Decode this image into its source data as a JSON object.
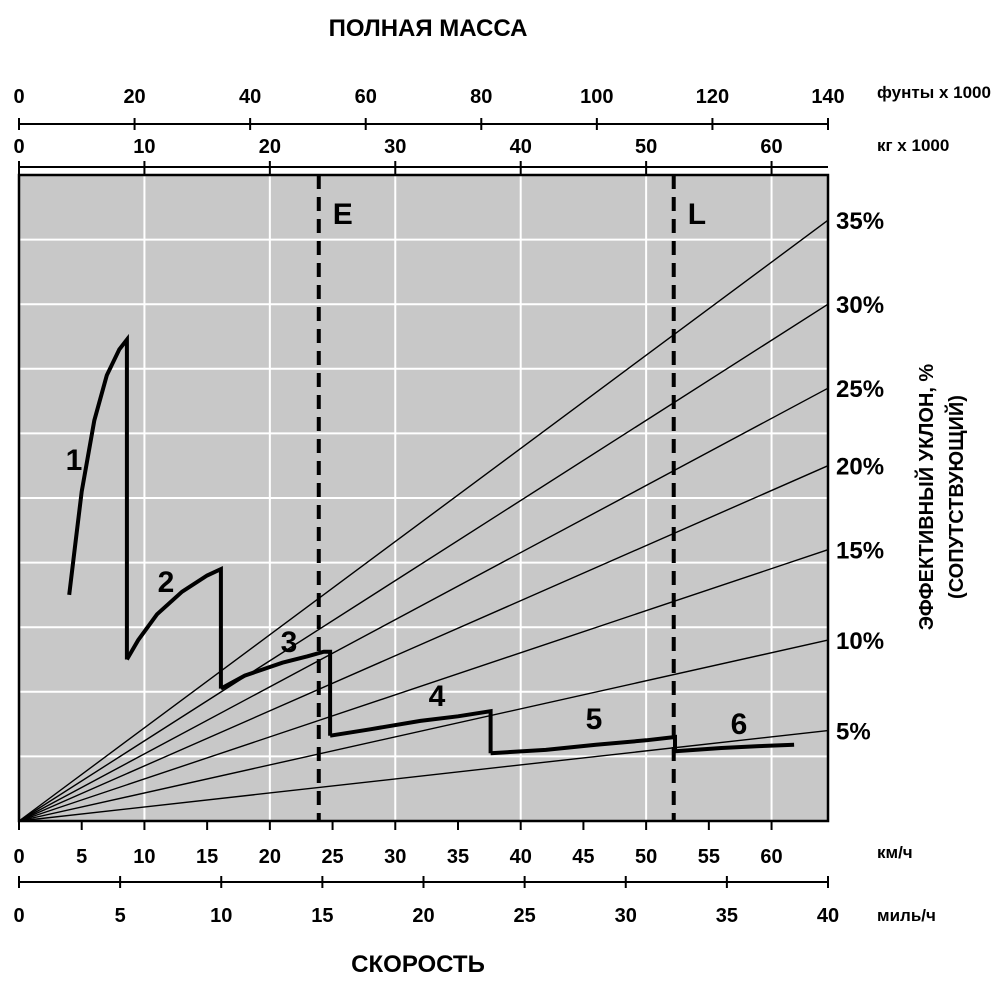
{
  "chart_data": {
    "type": "line",
    "title": "ПОЛНАЯ МАССА",
    "xlabel": "СКОРОСТЬ",
    "ylabel_line1": "ЭФФЕКТИВНЫЙ УКЛОН, %",
    "ylabel_line2": "(СОПУТСТВУЮЩИЙ)",
    "grid": true,
    "axes": {
      "top_lb": {
        "unit": "фунты x 1000",
        "min": 0,
        "max": 140,
        "ticks": [
          0,
          20,
          40,
          60,
          80,
          100,
          120,
          140
        ]
      },
      "top_kg": {
        "unit": "кг x 1000",
        "min": 0,
        "max": 64.5,
        "ticks": [
          0,
          10,
          20,
          30,
          40,
          50,
          60
        ]
      },
      "bottom_kmh": {
        "unit": "км/ч",
        "min": 0,
        "max": 64.5,
        "ticks": [
          0,
          5,
          10,
          15,
          20,
          25,
          30,
          35,
          40,
          45,
          50,
          55,
          60
        ]
      },
      "bottom_mph": {
        "unit": "миль/ч",
        "min": 0,
        "max": 40,
        "ticks": [
          0,
          5,
          10,
          15,
          20,
          25,
          30,
          35,
          40
        ]
      },
      "rimpull": {
        "min": 0,
        "max": 100,
        "grid_step": 10
      }
    },
    "grade_lines": {
      "labels": [
        "5%",
        "10%",
        "15%",
        "20%",
        "25%",
        "30%",
        "35%"
      ],
      "right_edge_rimpull": [
        14,
        28,
        42,
        55,
        67,
        80,
        93
      ]
    },
    "curves": [
      {
        "name": "1",
        "x_kmh": [
          4,
          4.5,
          5,
          6,
          7,
          8,
          8.6,
          8.6
        ],
        "y": [
          35,
          43,
          51,
          62,
          69,
          73,
          74.5,
          25
        ]
      },
      {
        "name": "2",
        "x_kmh": [
          8.6,
          9.5,
          11,
          13,
          15,
          16.1,
          16.1
        ],
        "y": [
          25,
          28,
          32,
          35.5,
          38,
          39,
          20.5
        ]
      },
      {
        "name": "3",
        "x_kmh": [
          16.1,
          18,
          21,
          23,
          24.3,
          24.8,
          24.8
        ],
        "y": [
          20.5,
          22.5,
          24.5,
          25.5,
          26.2,
          26.2,
          13.2
        ]
      },
      {
        "name": "4",
        "x_kmh": [
          24.8,
          28,
          32,
          35,
          37.6,
          37.6
        ],
        "y": [
          13.2,
          14.2,
          15.5,
          16.2,
          17,
          10.5
        ]
      },
      {
        "name": "5",
        "x_kmh": [
          37.6,
          42,
          46,
          50,
          52.3,
          52.3
        ],
        "y": [
          10.5,
          11,
          11.8,
          12.5,
          13,
          10.8
        ]
      },
      {
        "name": "6",
        "x_kmh": [
          52.3,
          56,
          59,
          61.8
        ],
        "y": [
          10.8,
          11.3,
          11.6,
          11.8
        ]
      }
    ],
    "markers": [
      {
        "name": "E",
        "x_kg": 23.9
      },
      {
        "name": "L",
        "x_kg": 52.2
      }
    ]
  }
}
